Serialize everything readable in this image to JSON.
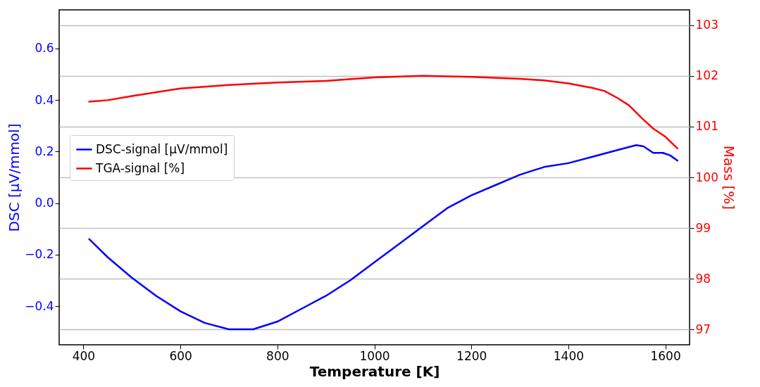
{
  "chart_data": {
    "type": "line",
    "xlabel": "Temperature [K]",
    "ylabel": "DSC [µV/mmol]",
    "y2label": "Mass [%]",
    "xlim": [
      350,
      1650
    ],
    "xticks": [
      400,
      600,
      800,
      1000,
      1200,
      1400,
      1600
    ],
    "ylim": [
      -0.55,
      0.75
    ],
    "yticks": [
      {
        "value": -0.4,
        "label": "−0.4"
      },
      {
        "value": -0.2,
        "label": "−0.2"
      },
      {
        "value": 0,
        "label": "0.0"
      },
      0.2,
      0.4,
      0.6
    ],
    "y2lim": [
      96.7,
      103.3
    ],
    "y2ticks": [
      97,
      98,
      99,
      100,
      101,
      102,
      103
    ],
    "grid": "y2",
    "legend": "left",
    "line_style": "solid",
    "marker": "none",
    "series": [
      {
        "name": "DSC-signal [µV/mmol]",
        "color": "#0000ff",
        "x": [
          412,
          450,
          500,
          550,
          600,
          650,
          700,
          750,
          800,
          850,
          900,
          950,
          1000,
          1050,
          1100,
          1150,
          1200,
          1250,
          1300,
          1350,
          1400,
          1450,
          1500,
          1540,
          1555,
          1575,
          1595,
          1610,
          1625
        ],
        "values": [
          -0.14,
          -0.21,
          -0.29,
          -0.36,
          -0.42,
          -0.465,
          -0.49,
          -0.49,
          -0.46,
          -0.41,
          -0.36,
          -0.3,
          -0.23,
          -0.16,
          -0.09,
          -0.02,
          0.03,
          0.07,
          0.11,
          0.14,
          0.155,
          0.18,
          0.205,
          0.225,
          0.22,
          0.195,
          0.195,
          0.185,
          0.165
        ]
      },
      {
        "name": "TGA-signal [%]",
        "color": "#ff0000",
        "axis": "y2",
        "x": [
          412,
          450,
          500,
          600,
          700,
          800,
          900,
          1000,
          1100,
          1200,
          1300,
          1350,
          1400,
          1450,
          1475,
          1500,
          1525,
          1550,
          1575,
          1600,
          1625
        ],
        "values": [
          101.49,
          101.52,
          101.6,
          101.75,
          101.82,
          101.87,
          101.9,
          101.97,
          102.0,
          101.98,
          101.94,
          101.91,
          101.85,
          101.76,
          101.7,
          101.57,
          101.42,
          101.18,
          100.96,
          100.8,
          100.57
        ]
      }
    ]
  }
}
